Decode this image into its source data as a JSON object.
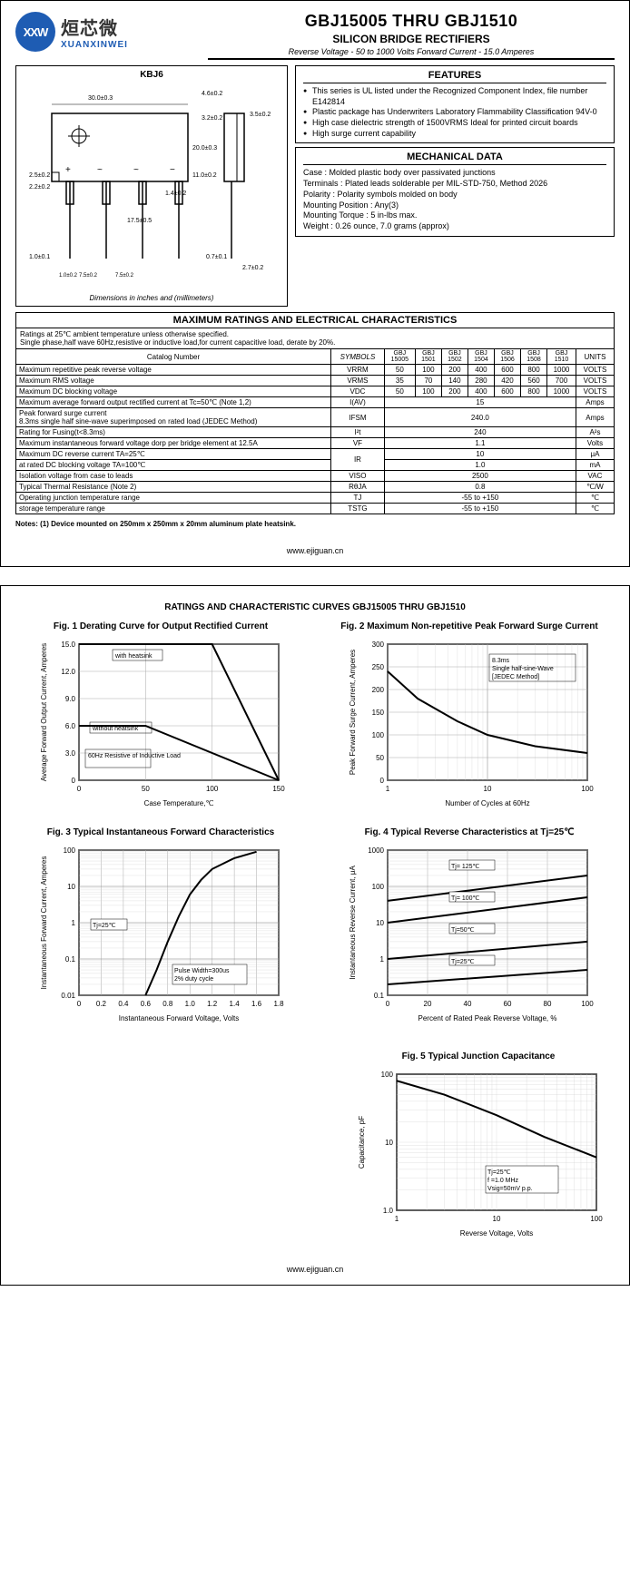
{
  "header": {
    "logo_abbr": "XXW",
    "logo_cn": "烜芯微",
    "logo_en": "XUANXINWEI",
    "main_title": "GBJ15005 THRU GBJ1510",
    "sub_title": "SILICON BRIDGE RECTIFIERS",
    "sub_title2": "Reverse Voltage - 50 to 1000 Volts    Forward Current - 15.0 Amperes"
  },
  "diagram": {
    "title": "KBJ6",
    "caption": "Dimensions in inches and (millimeters)",
    "dims": {
      "w": "30.0±0.3",
      "h": "20.0±0.3",
      "t1": "4.6±0.2",
      "t2": "3.2±0.2",
      "t3": "3.5±0.2",
      "t4": "11.0±0.2",
      "p1": "2.5±0.2",
      "p2": "2.2±0.2",
      "p3": "1.0±0.1",
      "p4": "17.5±0.5",
      "p5": "0.7±0.1",
      "p6": "2.7±0.2",
      "sp": "7.5±0.2",
      "lw": "1.4±0.2",
      "sp0": "1.0±0.2"
    }
  },
  "features": {
    "title": "FEATURES",
    "items": [
      "This series is UL listed under the Recognized Component Index, file number E142814",
      "Plastic package has Underwriters Laboratory Flammability Classification 94V-0",
      "High case dielectric strength of 1500VRMS Ideal for printed circuit boards",
      "High surge current capability"
    ]
  },
  "mechanical": {
    "title": "MECHANICAL DATA",
    "lines": [
      "Case : Molded plastic body over passivated junctions",
      "Terminals : Plated leads solderable per MIL-STD-750, Method 2026",
      "Polarity : Polarity symbols molded on body",
      "Mounting Position : Any(3)",
      "Mounting Torque : 5 in-lbs max.",
      "Weight : 0.26 ounce, 7.0 grams (approx)"
    ]
  },
  "ratings": {
    "section_title": "MAXIMUM RATINGS AND ELECTRICAL CHARACTERISTICS",
    "note": "Ratings at 25℃ ambient temperature unless otherwise specified.\nSingle phase,half wave 60Hz,resistive or inductive load,for current capacitive load, derate by 20%.",
    "headers": [
      "Catalog Number",
      "SYMBOLS",
      "GBJ 15005",
      "GBJ 1501",
      "GBJ 1502",
      "GBJ 1504",
      "GBJ 1506",
      "GBJ 1508",
      "GBJ 1510",
      "UNITS"
    ],
    "rows": [
      {
        "label": "Maximum repetitive peak reverse voltage",
        "sym": "VRRM",
        "vals": [
          "50",
          "100",
          "200",
          "400",
          "600",
          "800",
          "1000"
        ],
        "unit": "VOLTS"
      },
      {
        "label": "Maximum RMS voltage",
        "sym": "VRMS",
        "vals": [
          "35",
          "70",
          "140",
          "280",
          "420",
          "560",
          "700"
        ],
        "unit": "VOLTS"
      },
      {
        "label": "Maximum DC blocking voltage",
        "sym": "VDC",
        "vals": [
          "50",
          "100",
          "200",
          "400",
          "600",
          "800",
          "1000"
        ],
        "unit": "VOLTS"
      },
      {
        "label": "Maximum average forward output rectified current at  Tc=50℃  (Note 1,2)",
        "sym": "I(AV)",
        "span": "15",
        "unit": "Amps"
      },
      {
        "label": "Peak forward surge current\n8.3ms single half sine-wave superimposed on rated load (JEDEC Method)",
        "sym": "IFSM",
        "span": "240.0",
        "unit": "Amps"
      },
      {
        "label": "Rating for Fusing(t<8.3ms)",
        "sym": "I²t",
        "span": "240",
        "unit": "A²s"
      },
      {
        "label": "Maximum instantaneous forward voltage dorp per bridge element at 12.5A",
        "sym": "VF",
        "span": "1.1",
        "unit": "Volts"
      },
      {
        "label": "Maximum DC reverse current      TA=25℃",
        "sym": "IR",
        "span": "10",
        "unit": "μA",
        "rowspan_sym": 2
      },
      {
        "label": "at rated DC blocking voltage       TA=100℃",
        "sym": "",
        "span": "1.0",
        "unit": "mA"
      },
      {
        "label": "Isolation voltage from case to leads",
        "sym": "VISO",
        "span": "2500",
        "unit": "VAC"
      },
      {
        "label": "Typical Thermal Resistance (Note 2)",
        "sym": "RθJA",
        "span": "0.8",
        "unit": "℃/W"
      },
      {
        "label": "Operating junction temperature range",
        "sym": "TJ",
        "span": "-55 to +150",
        "unit": "℃"
      },
      {
        "label": "storage temperature range",
        "sym": "TSTG",
        "span": "-55 to +150",
        "unit": "℃"
      }
    ]
  },
  "notes": "Notes: (1) Device mounted on 250mm x 250mm x 20mm aluminum plate heatsink.",
  "footer": "www.ejiguan.cn",
  "page2": {
    "title": "RATINGS AND CHARACTERISTIC CURVES GBJ15005 THRU GBJ1510",
    "charts": {
      "fig1": {
        "title": "Fig. 1 Derating Curve for Output Rectified Current",
        "xlabel": "Case Temperature,℃",
        "ylabel": "Average Forward Output Current, Amperes",
        "xticks": [
          "0",
          "50",
          "100",
          "150"
        ],
        "yticks": [
          "0",
          "3.0",
          "6.0",
          "9.0",
          "12.0",
          "15.0"
        ],
        "anno1": "with heatsink",
        "anno2": "without heatsink",
        "anno3": "60Hz Resistive of Inductive Load",
        "line1": [
          [
            0,
            15
          ],
          [
            100,
            15
          ],
          [
            150,
            0
          ]
        ],
        "line2": [
          [
            0,
            6
          ],
          [
            50,
            6
          ],
          [
            150,
            0
          ]
        ]
      },
      "fig2": {
        "title": "Fig. 2 Maximum Non-repetitive Peak Forward Surge Current",
        "xlabel": "Number of Cycles at 60Hz",
        "ylabel": "Peak Forward Surge Current, Amperes",
        "xticks": [
          "1",
          "10",
          "100"
        ],
        "yticks": [
          "0",
          "50",
          "100",
          "150",
          "200",
          "250",
          "300"
        ],
        "anno": "8.3ms\nSingle half-sine-Wave\n[JEDEC Method]",
        "line": [
          [
            1,
            240
          ],
          [
            2,
            180
          ],
          [
            5,
            130
          ],
          [
            10,
            100
          ],
          [
            30,
            75
          ],
          [
            100,
            60
          ]
        ]
      },
      "fig3": {
        "title": "Fig. 3 Typical Instantaneous Forward Characteristics",
        "xlabel": "Instantaneous Forward Voltage, Volts",
        "ylabel": "Instantaneous Forward Current, Amperes",
        "xticks": [
          "0",
          "0.2",
          "0.4",
          "0.6",
          "0.8",
          "1.0",
          "1.2",
          "1.4",
          "1.6",
          "1.8"
        ],
        "yticks": [
          "0.01",
          "0.1",
          "1",
          "10",
          "100"
        ],
        "anno1": "Tj=25℃",
        "anno2": "Pulse Width=300us\n2% duty cycle",
        "line": [
          [
            0.6,
            0.01
          ],
          [
            0.7,
            0.05
          ],
          [
            0.8,
            0.3
          ],
          [
            0.9,
            1.5
          ],
          [
            1.0,
            6
          ],
          [
            1.1,
            15
          ],
          [
            1.2,
            30
          ],
          [
            1.4,
            60
          ],
          [
            1.6,
            90
          ]
        ]
      },
      "fig4": {
        "title": "Fig. 4 Typical Reverse Characteristics at Tj=25℃",
        "xlabel": "Percent of Rated Peak Reverse Voltage, %",
        "ylabel": "Instantaneous Reverse Current, μA",
        "xticks": [
          "0",
          "20",
          "40",
          "60",
          "80",
          "100"
        ],
        "yticks": [
          "0.1",
          "1",
          "10",
          "100",
          "1000"
        ],
        "labels": [
          "Tj= 125℃",
          "Tj= 100℃",
          "Tj=50℃",
          "Tj=25℃"
        ],
        "lines": [
          [
            [
              0,
              40
            ],
            [
              100,
              200
            ]
          ],
          [
            [
              0,
              10
            ],
            [
              100,
              50
            ]
          ],
          [
            [
              0,
              1
            ],
            [
              100,
              3
            ]
          ],
          [
            [
              0,
              0.2
            ],
            [
              100,
              0.5
            ]
          ]
        ]
      },
      "fig5": {
        "title": "Fig. 5 Typical Junction Capacitance",
        "xlabel": "Reverse Voltage, Volts",
        "ylabel": "Capacitance, pF",
        "xticks": [
          "1",
          "10",
          "100"
        ],
        "yticks": [
          "1.0",
          "10",
          "100"
        ],
        "anno": "Tj=25℃\nf =1.0 MHz\nVsig=50mV p.p.",
        "line": [
          [
            1,
            80
          ],
          [
            3,
            50
          ],
          [
            10,
            25
          ],
          [
            30,
            12
          ],
          [
            100,
            6
          ]
        ]
      }
    }
  }
}
